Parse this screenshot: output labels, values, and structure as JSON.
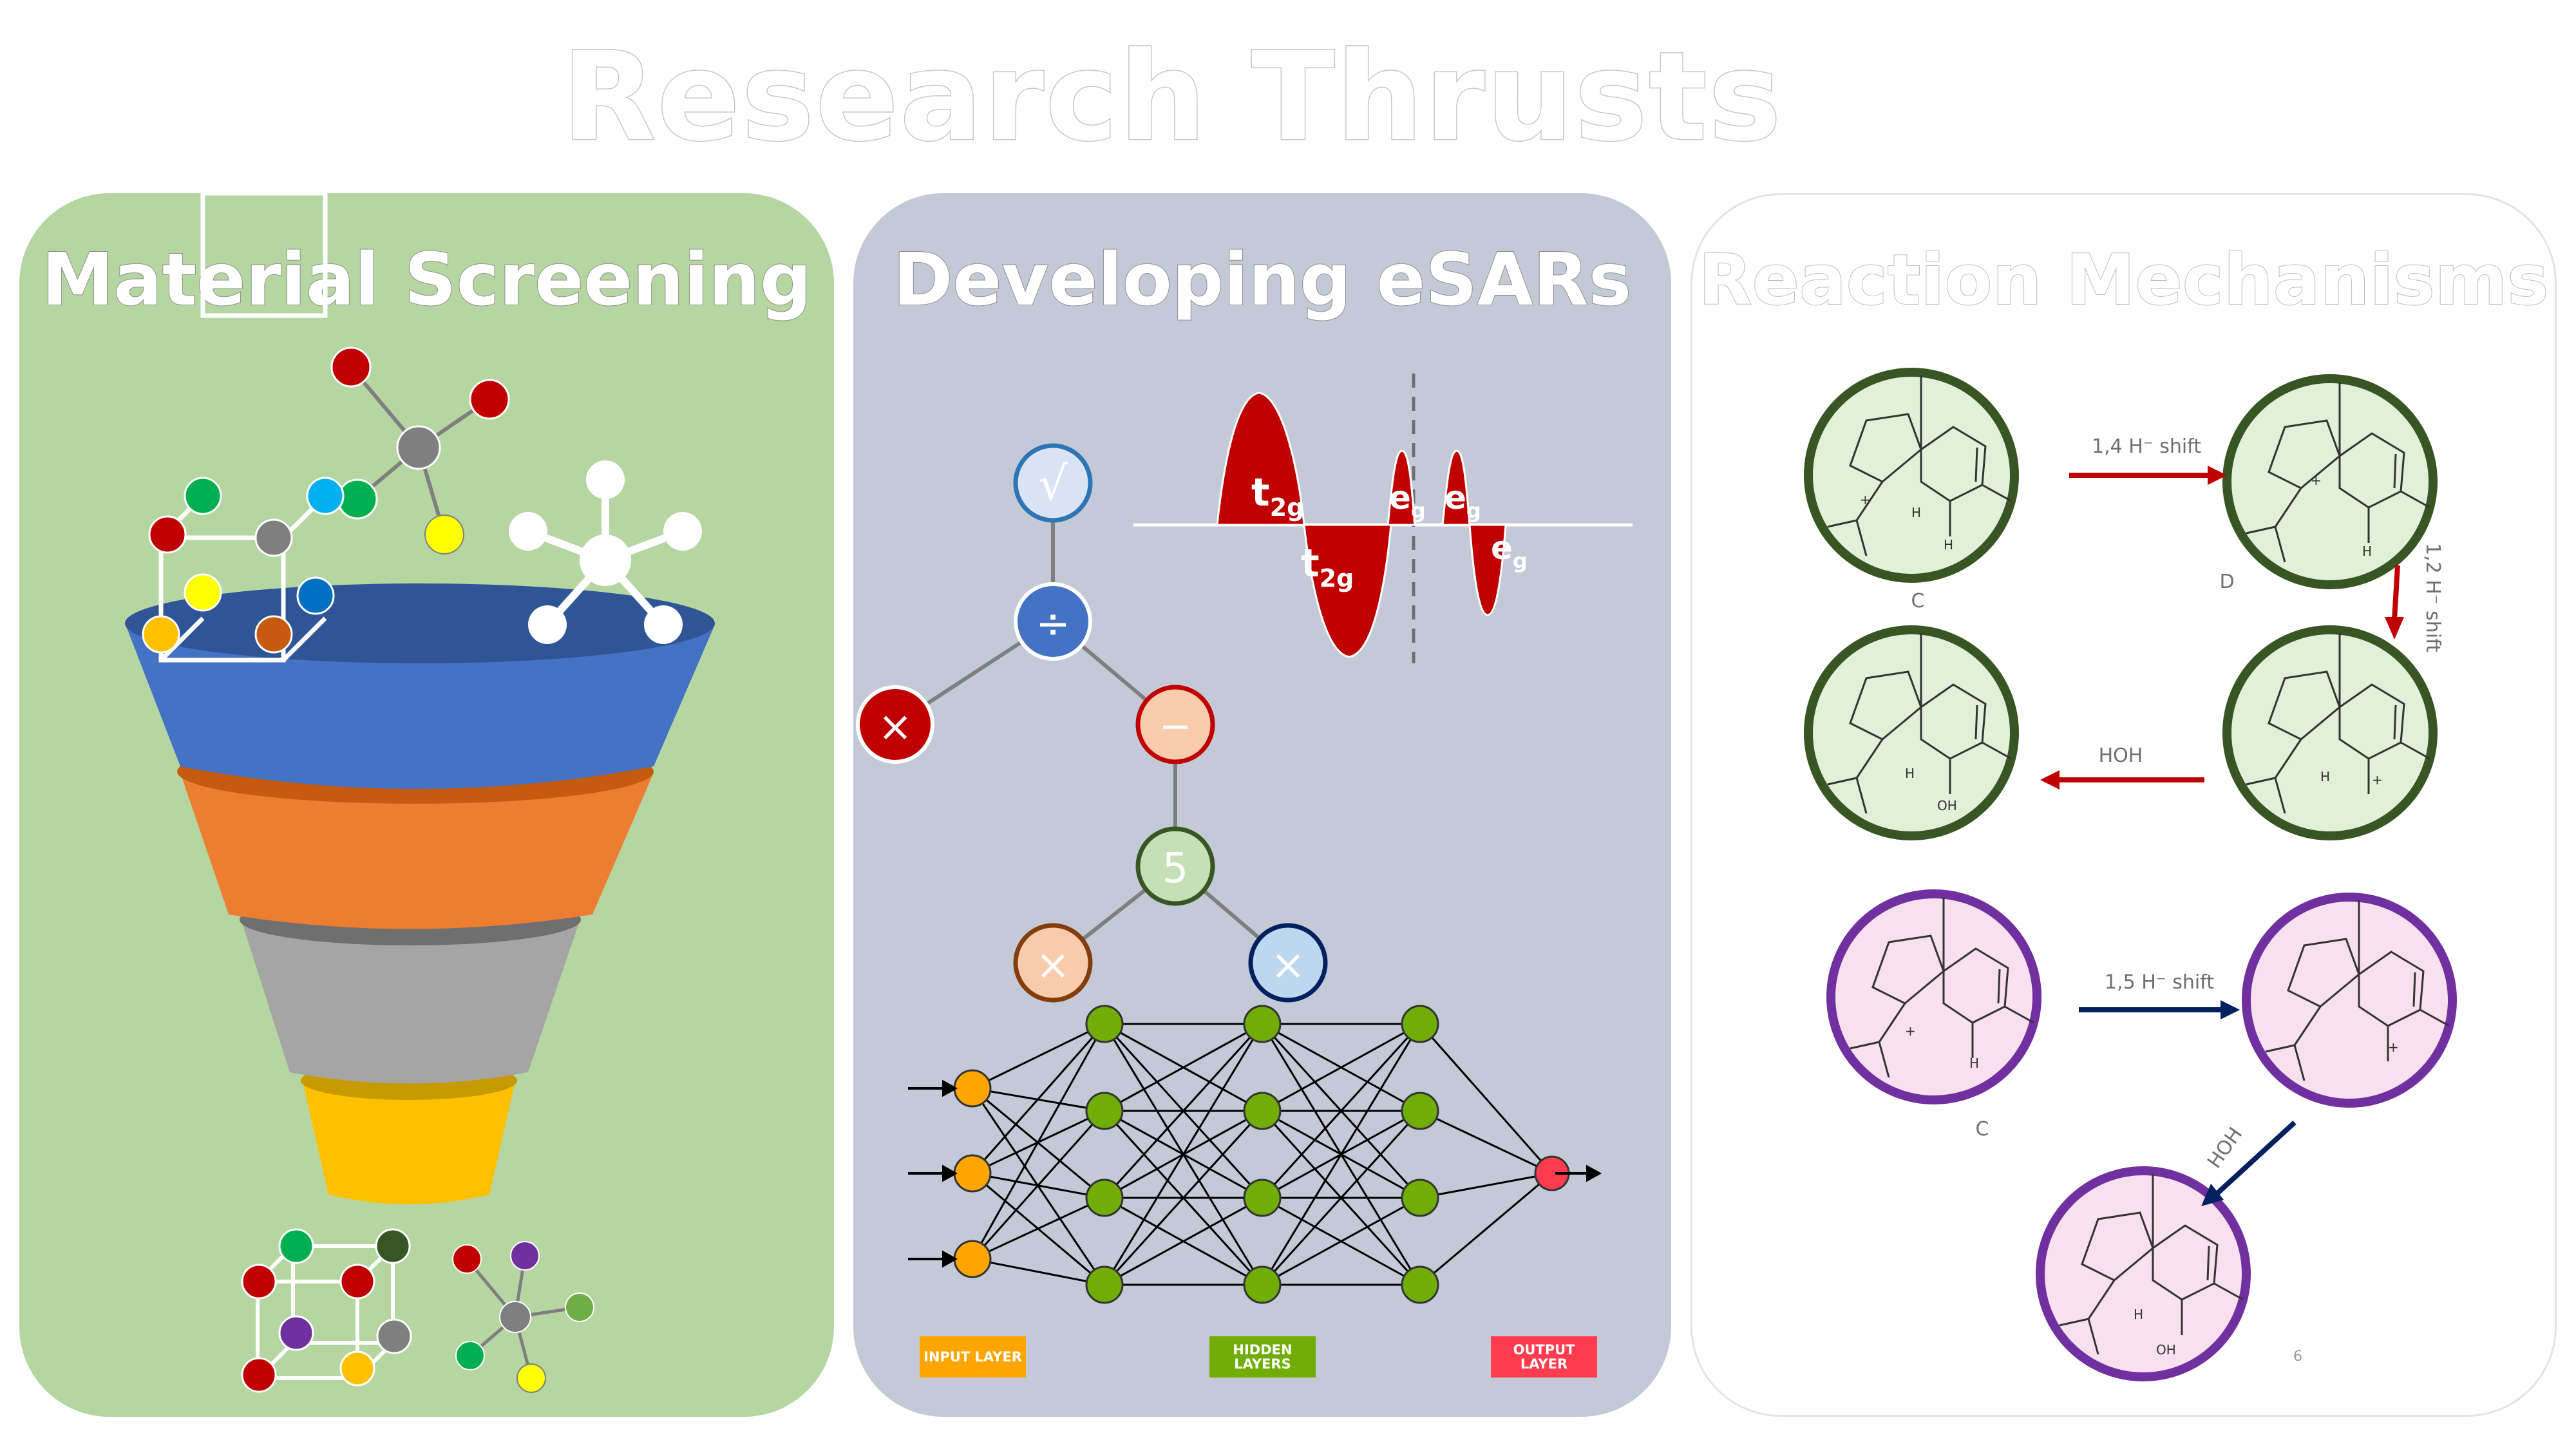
{
  "title": "Research Thrusts",
  "panels": {
    "material": {
      "title": "Material Screening",
      "bg": "#b5d6a1"
    },
    "esar": {
      "title": "Developing eSARs",
      "bg": "#c3c9d6",
      "tree": {
        "root": "√",
        "divide": "÷",
        "minus": "−",
        "five": "5",
        "times": "×"
      },
      "orbitals": {
        "t2g": "t",
        "t2g_sub": "2g",
        "eg": "e",
        "eg_sub": "g"
      },
      "layers": {
        "input": "INPUT LAYER",
        "hidden": "HIDDEN LAYERS",
        "output": "OUTPUT LAYER"
      }
    },
    "mechanisms": {
      "title": "Reaction Mechanisms",
      "arrows": {
        "shift14": "1,4 H⁻ shift",
        "shift12": "1,2 H⁻ shift",
        "hoh1": "HOH",
        "shift15": "1,5 H⁻ shift",
        "hoh2": "HOH"
      },
      "labels": {
        "c1": "C",
        "d": "D",
        "c2": "C"
      },
      "atoms": {
        "h": "H",
        "oh": "OH",
        "plus": "+"
      },
      "page_number": "6"
    }
  },
  "colors": {
    "funnel_blue": "#4472c4",
    "funnel_orange": "#ed7d31",
    "funnel_gray": "#a5a5a5",
    "funnel_gold": "#ffc000",
    "mech_green_ring": "#375623",
    "mech_green_fill": "#e2efd9",
    "mech_purple_ring": "#7030a0",
    "mech_purple_fill": "#f8e0ef",
    "red_arrow": "#c00000",
    "navy_arrow": "#002060",
    "node_green": "#70ad07",
    "node_orange": "#ffa500",
    "node_red": "#ff3b4e"
  }
}
